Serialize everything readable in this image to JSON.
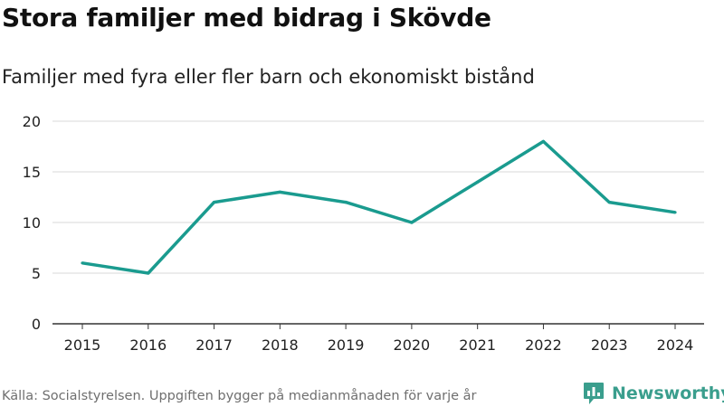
{
  "title": "Stora familjer med bidrag i Skövde",
  "subtitle": "Familjer med fyra eller fler barn och ekonomiskt bistånd",
  "footer": {
    "source": "Källa: Socialstyrelsen. Uppgiften bygger på medianmånaden för varje år"
  },
  "brand": {
    "name": "Newsworthy",
    "icon": "bar-chart-logo-icon",
    "color": "#3a9e8d"
  },
  "colors": {
    "line": "#1a9b8f",
    "grid": "#d9d9d9",
    "axis": "#333333",
    "text": "#222222"
  },
  "chart_data": {
    "type": "line",
    "title": "Stora familjer med bidrag i Skövde",
    "subtitle": "Familjer med fyra eller fler barn och ekonomiskt bistånd",
    "xlabel": "",
    "ylabel": "",
    "categories": [
      "2015",
      "2016",
      "2017",
      "2018",
      "2019",
      "2020",
      "2021",
      "2022",
      "2023",
      "2024"
    ],
    "series": [
      {
        "name": "Familjer med fyra eller fler barn och ekonomiskt bistånd",
        "values": [
          6,
          5,
          12,
          13,
          12,
          10,
          14,
          18,
          12,
          11
        ]
      }
    ],
    "yticks": [
      "0",
      "5",
      "10",
      "15",
      "20"
    ],
    "ylim": [
      0,
      20
    ],
    "grid": true,
    "legend": "none"
  }
}
